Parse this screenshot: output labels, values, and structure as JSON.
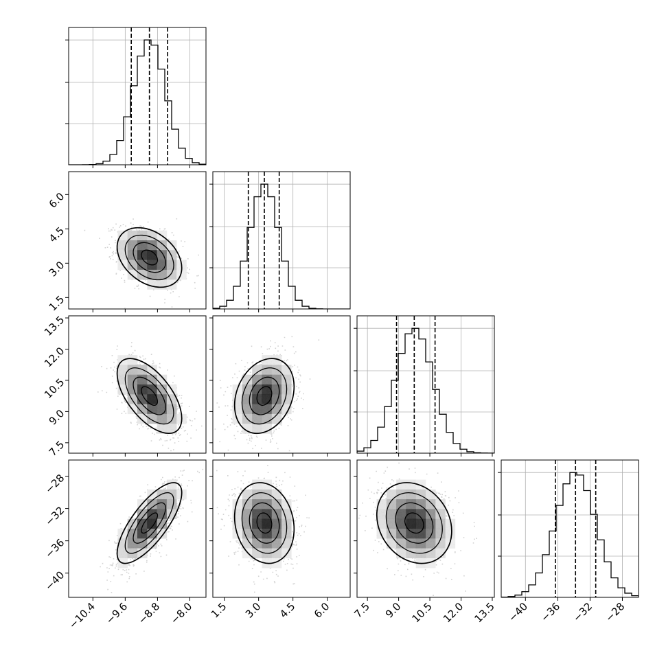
{
  "chart_data": {
    "type": "corner",
    "title": "",
    "parameters": [
      {
        "index": 0,
        "range": [
          -11.0,
          -7.6
        ],
        "ticks": [
          -10.4,
          -9.6,
          -8.8,
          -8.0
        ],
        "tick_labels": [
          "−10.4",
          "−9.6",
          "−8.8",
          "−8.0"
        ],
        "quantiles": [
          -9.45,
          -9.0,
          -8.55
        ],
        "mean": -9.0,
        "sd": 0.4
      },
      {
        "index": 1,
        "range": [
          1.0,
          7.0
        ],
        "ticks": [
          1.5,
          3.0,
          4.5,
          6.0
        ],
        "tick_labels": [
          "1.5",
          "3.0",
          "4.5",
          "6.0"
        ],
        "quantiles": [
          2.55,
          3.25,
          3.9
        ],
        "mean": 3.25,
        "sd": 0.65
      },
      {
        "index": 2,
        "range": [
          7.0,
          13.6
        ],
        "ticks": [
          7.5,
          9.0,
          10.5,
          12.0,
          13.5
        ],
        "tick_labels": [
          "7.5",
          "9.0",
          "10.5",
          "12.0",
          "13.5"
        ],
        "quantiles": [
          8.9,
          9.75,
          10.75
        ],
        "mean": 9.75,
        "sd": 0.9
      },
      {
        "index": 3,
        "range": [
          -43.0,
          -26.0
        ],
        "ticks": [
          -40,
          -36,
          -32,
          -28
        ],
        "tick_labels": [
          "−40",
          "−36",
          "−32",
          "−28"
        ],
        "quantiles": [
          -36.3,
          -33.8,
          -31.3
        ],
        "mean": -33.8,
        "sd": 2.5
      }
    ],
    "correlations": {
      "0_1": -0.35,
      "0_2": -0.6,
      "0_3": 0.75,
      "1_2": 0.25,
      "1_3": -0.15,
      "2_3": -0.2
    },
    "histogram_bins": 20,
    "grid": true,
    "colors": {
      "line": "#000000",
      "grid": "#b0b0b0",
      "points": "#7f7f7f"
    }
  }
}
